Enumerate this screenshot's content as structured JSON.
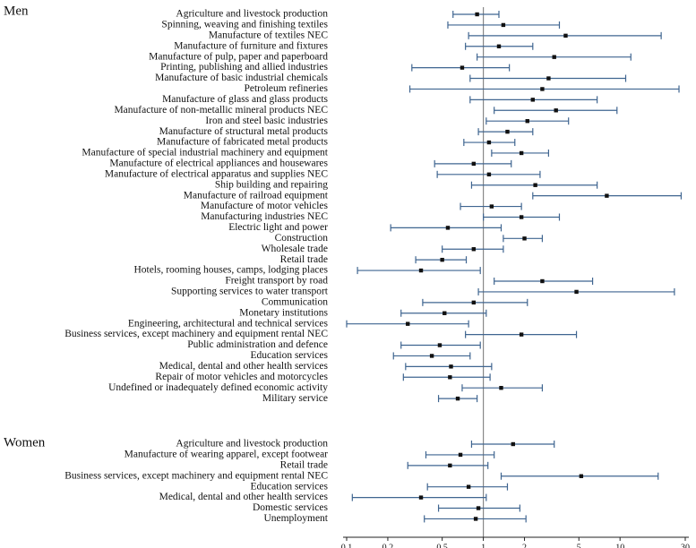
{
  "chart_data": {
    "type": "forest",
    "x_scale": "log",
    "xlim": [
      0.1,
      30
    ],
    "x_ticks": [
      0.1,
      0.2,
      0.5,
      1,
      2,
      5,
      10,
      30
    ],
    "x_tick_labels": [
      "0.1",
      "0.2",
      "0.5",
      "1",
      "2",
      "5",
      "10",
      "30"
    ],
    "reference_line": 1,
    "colors": {
      "ci_line": "#3f6590",
      "point": "#111111",
      "reference": "#888888"
    },
    "groups": [
      {
        "title": "Men",
        "rows": [
          {
            "label": "Agriculture and livestock production",
            "est": 0.9,
            "lo": 0.6,
            "hi": 1.3
          },
          {
            "label": "Spinning, weaving and finishing textiles",
            "est": 1.4,
            "lo": 0.55,
            "hi": 3.6
          },
          {
            "label": "Manufacture of textiles NEC",
            "est": 4.0,
            "lo": 0.78,
            "hi": 20.0
          },
          {
            "label": "Manufacture of furniture and fixtures",
            "est": 1.3,
            "lo": 0.74,
            "hi": 2.3
          },
          {
            "label": "Manufacture of pulp, paper and paperboard",
            "est": 3.3,
            "lo": 0.9,
            "hi": 12.0
          },
          {
            "label": "Printing, publishing and allied industries",
            "est": 0.7,
            "lo": 0.3,
            "hi": 1.55
          },
          {
            "label": "Manufacture of basic industrial chemicals",
            "est": 3.0,
            "lo": 0.8,
            "hi": 11.0
          },
          {
            "label": "Petroleum refineries",
            "est": 2.7,
            "lo": 0.29,
            "hi": 27.0
          },
          {
            "label": "Manufacture of glass and glass products",
            "est": 2.3,
            "lo": 0.8,
            "hi": 6.8
          },
          {
            "label": "Manufacture of non-metallic mineral products NEC",
            "est": 3.4,
            "lo": 1.2,
            "hi": 9.5
          },
          {
            "label": "Iron and steel basic industries",
            "est": 2.1,
            "lo": 1.05,
            "hi": 4.2
          },
          {
            "label": "Manufacture of structural metal products",
            "est": 1.5,
            "lo": 0.92,
            "hi": 2.3
          },
          {
            "label": "Manufacture of fabricated metal products",
            "est": 1.1,
            "lo": 0.72,
            "hi": 1.7
          },
          {
            "label": "Manufacture of special industrial machinery and equipment",
            "est": 1.9,
            "lo": 1.15,
            "hi": 3.0
          },
          {
            "label": "Manufacture of electrical appliances and housewares",
            "est": 0.85,
            "lo": 0.44,
            "hi": 1.6
          },
          {
            "label": "Manufacture of electrical apparatus and supplies NEC",
            "est": 1.1,
            "lo": 0.46,
            "hi": 2.6
          },
          {
            "label": "Ship building and repairing",
            "est": 2.4,
            "lo": 0.82,
            "hi": 6.8
          },
          {
            "label": "Manufacture of railroad equipment",
            "est": 8.0,
            "lo": 2.3,
            "hi": 28.0
          },
          {
            "label": "Manufacture of motor vehicles",
            "est": 1.15,
            "lo": 0.68,
            "hi": 1.9
          },
          {
            "label": "Manufacturing industries NEC",
            "est": 1.9,
            "lo": 1.0,
            "hi": 3.6
          },
          {
            "label": "Electric light and power",
            "est": 0.55,
            "lo": 0.21,
            "hi": 1.35
          },
          {
            "label": "Construction",
            "est": 2.0,
            "lo": 1.4,
            "hi": 2.7
          },
          {
            "label": "Wholesale trade",
            "est": 0.85,
            "lo": 0.5,
            "hi": 1.4
          },
          {
            "label": "Retail trade",
            "est": 0.5,
            "lo": 0.32,
            "hi": 0.75
          },
          {
            "label": "Hotels, rooming houses, camps, lodging places",
            "est": 0.35,
            "lo": 0.12,
            "hi": 0.95
          },
          {
            "label": "Freight transport by road",
            "est": 2.7,
            "lo": 1.2,
            "hi": 6.3
          },
          {
            "label": "Supporting services to water transport",
            "est": 4.8,
            "lo": 0.92,
            "hi": 25.0
          },
          {
            "label": "Communication",
            "est": 0.85,
            "lo": 0.36,
            "hi": 2.1
          },
          {
            "label": "Monetary institutions",
            "est": 0.52,
            "lo": 0.25,
            "hi": 1.05
          },
          {
            "label": "Engineering, architectural and technical services",
            "est": 0.28,
            "lo": 0.1,
            "hi": 0.78
          },
          {
            "label": "Business services, except machinery and equipment rental NEC",
            "est": 1.9,
            "lo": 0.74,
            "hi": 4.8
          },
          {
            "label": "Public administration and defence",
            "est": 0.48,
            "lo": 0.25,
            "hi": 0.95
          },
          {
            "label": "Education services",
            "est": 0.42,
            "lo": 0.22,
            "hi": 0.8
          },
          {
            "label": "Medical, dental and other health services",
            "est": 0.58,
            "lo": 0.27,
            "hi": 1.15
          },
          {
            "label": "Repair of motor vehicles and motorcycles",
            "est": 0.57,
            "lo": 0.26,
            "hi": 1.12
          },
          {
            "label": "Undefined or inadequately defined economic activity",
            "est": 1.35,
            "lo": 0.7,
            "hi": 2.7
          },
          {
            "label": "Military service",
            "est": 0.65,
            "lo": 0.47,
            "hi": 0.9
          }
        ]
      },
      {
        "title": "Women",
        "rows": [
          {
            "label": "Agriculture and livestock production",
            "est": 1.65,
            "lo": 0.82,
            "hi": 3.3
          },
          {
            "label": "Manufacture of wearing apparel, except footwear",
            "est": 0.68,
            "lo": 0.38,
            "hi": 1.2
          },
          {
            "label": "Retail trade",
            "est": 0.57,
            "lo": 0.28,
            "hi": 1.08
          },
          {
            "label": "Business services, except machinery and equipment rental NEC",
            "est": 5.2,
            "lo": 1.35,
            "hi": 19.0
          },
          {
            "label": "Education services",
            "est": 0.78,
            "lo": 0.39,
            "hi": 1.5
          },
          {
            "label": "Medical, dental and other health services",
            "est": 0.35,
            "lo": 0.11,
            "hi": 1.05
          },
          {
            "label": "Domestic services",
            "est": 0.92,
            "lo": 0.47,
            "hi": 1.85
          },
          {
            "label": "Unemployment",
            "est": 0.88,
            "lo": 0.37,
            "hi": 2.05
          }
        ]
      }
    ]
  }
}
